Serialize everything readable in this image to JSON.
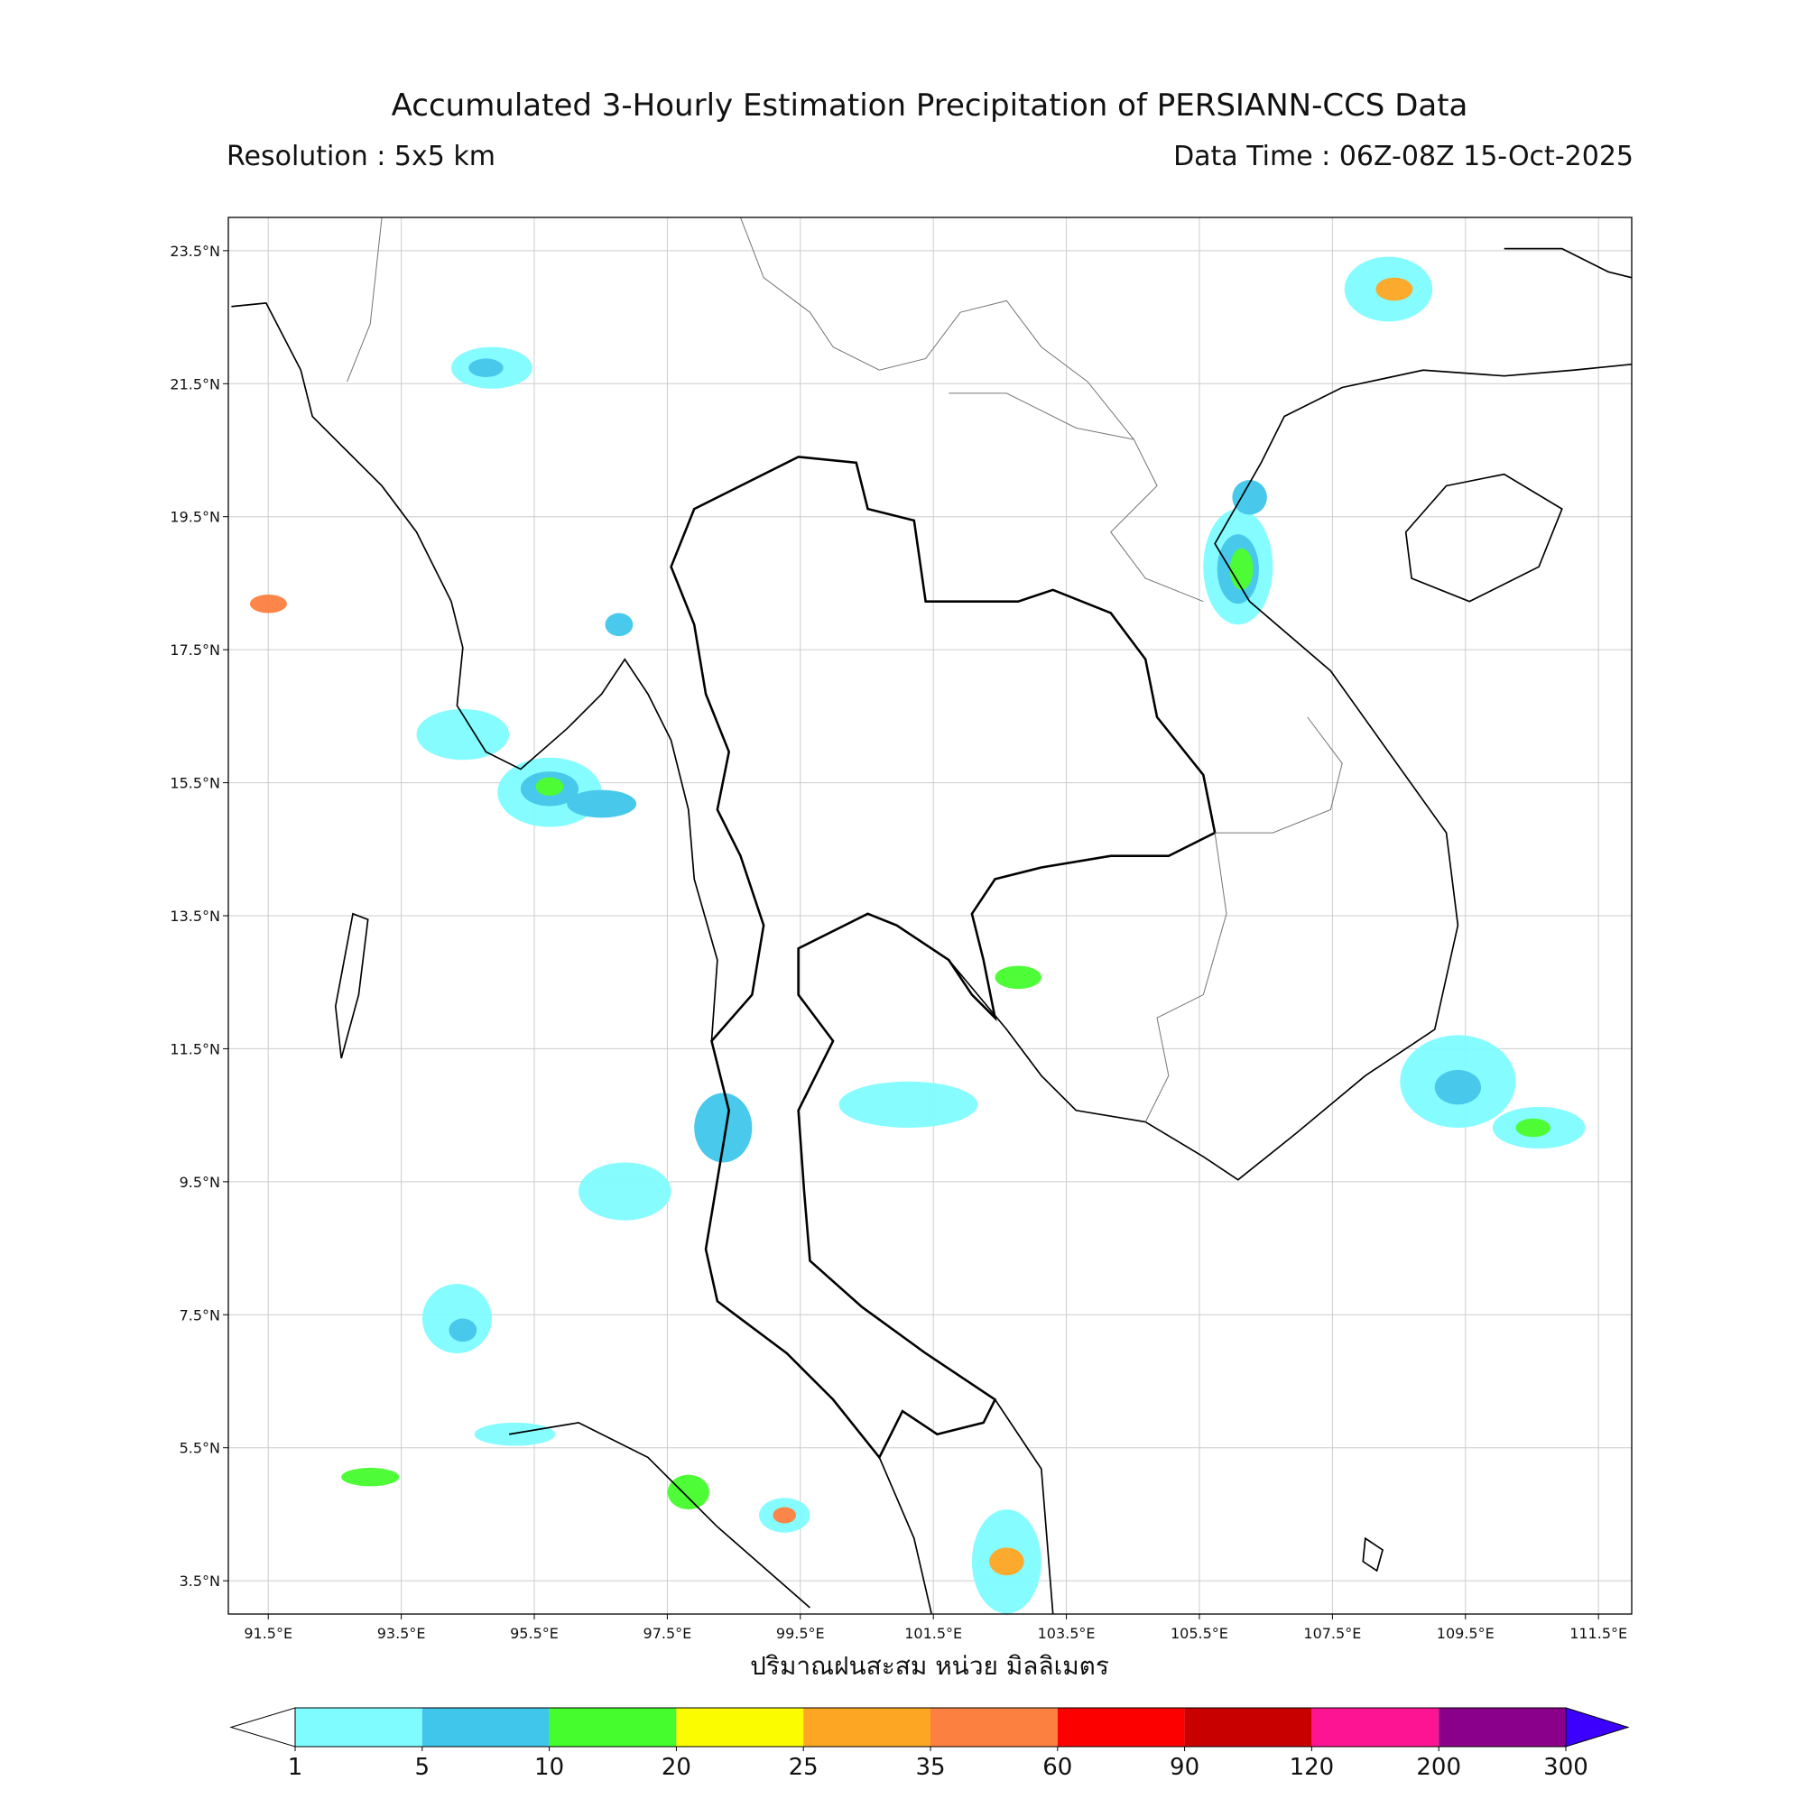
{
  "chart_data": {
    "type": "map",
    "title": "Accumulated 3-Hourly Estimation Precipitation of PERSIANN-CCS Data",
    "subtitle_left": "Resolution : 5x5 km",
    "subtitle_right": "Data Time : 06Z-08Z 15-Oct-2025",
    "xlabel": "ปริมาณฝนสะสม หน่วย มิลลิเมตร",
    "xlim": [
      90.9,
      112.0
    ],
    "ylim": [
      3.0,
      24.0
    ],
    "grid": true,
    "xticks": [
      {
        "value": 91.5,
        "label": "91.5°E"
      },
      {
        "value": 93.5,
        "label": "93.5°E"
      },
      {
        "value": 95.5,
        "label": "95.5°E"
      },
      {
        "value": 97.5,
        "label": "97.5°E"
      },
      {
        "value": 99.5,
        "label": "99.5°E"
      },
      {
        "value": 101.5,
        "label": "101.5°E"
      },
      {
        "value": 103.5,
        "label": "103.5°E"
      },
      {
        "value": 105.5,
        "label": "105.5°E"
      },
      {
        "value": 107.5,
        "label": "107.5°E"
      },
      {
        "value": 109.5,
        "label": "109.5°E"
      },
      {
        "value": 111.5,
        "label": "111.5°E"
      }
    ],
    "yticks": [
      {
        "value": 3.5,
        "label": "3.5°N"
      },
      {
        "value": 5.5,
        "label": "5.5°N"
      },
      {
        "value": 7.5,
        "label": "7.5°N"
      },
      {
        "value": 9.5,
        "label": "9.5°N"
      },
      {
        "value": 11.5,
        "label": "11.5°N"
      },
      {
        "value": 13.5,
        "label": "13.5°N"
      },
      {
        "value": 15.5,
        "label": "15.5°N"
      },
      {
        "value": 17.5,
        "label": "17.5°N"
      },
      {
        "value": 19.5,
        "label": "19.5°N"
      },
      {
        "value": 21.5,
        "label": "21.5°N"
      },
      {
        "value": 23.5,
        "label": "23.5°N"
      }
    ],
    "colorbar": {
      "levels": [
        1,
        5,
        10,
        20,
        25,
        35,
        60,
        90,
        120,
        200,
        300
      ],
      "colors": [
        "#ffffff",
        "#7ffcff",
        "#3fc6ea",
        "#45fc2c",
        "#fcfc00",
        "#fca623",
        "#fc8040",
        "#fc0000",
        "#c80000",
        "#fc1493",
        "#8b008b",
        "#3c00ff"
      ]
    }
  }
}
